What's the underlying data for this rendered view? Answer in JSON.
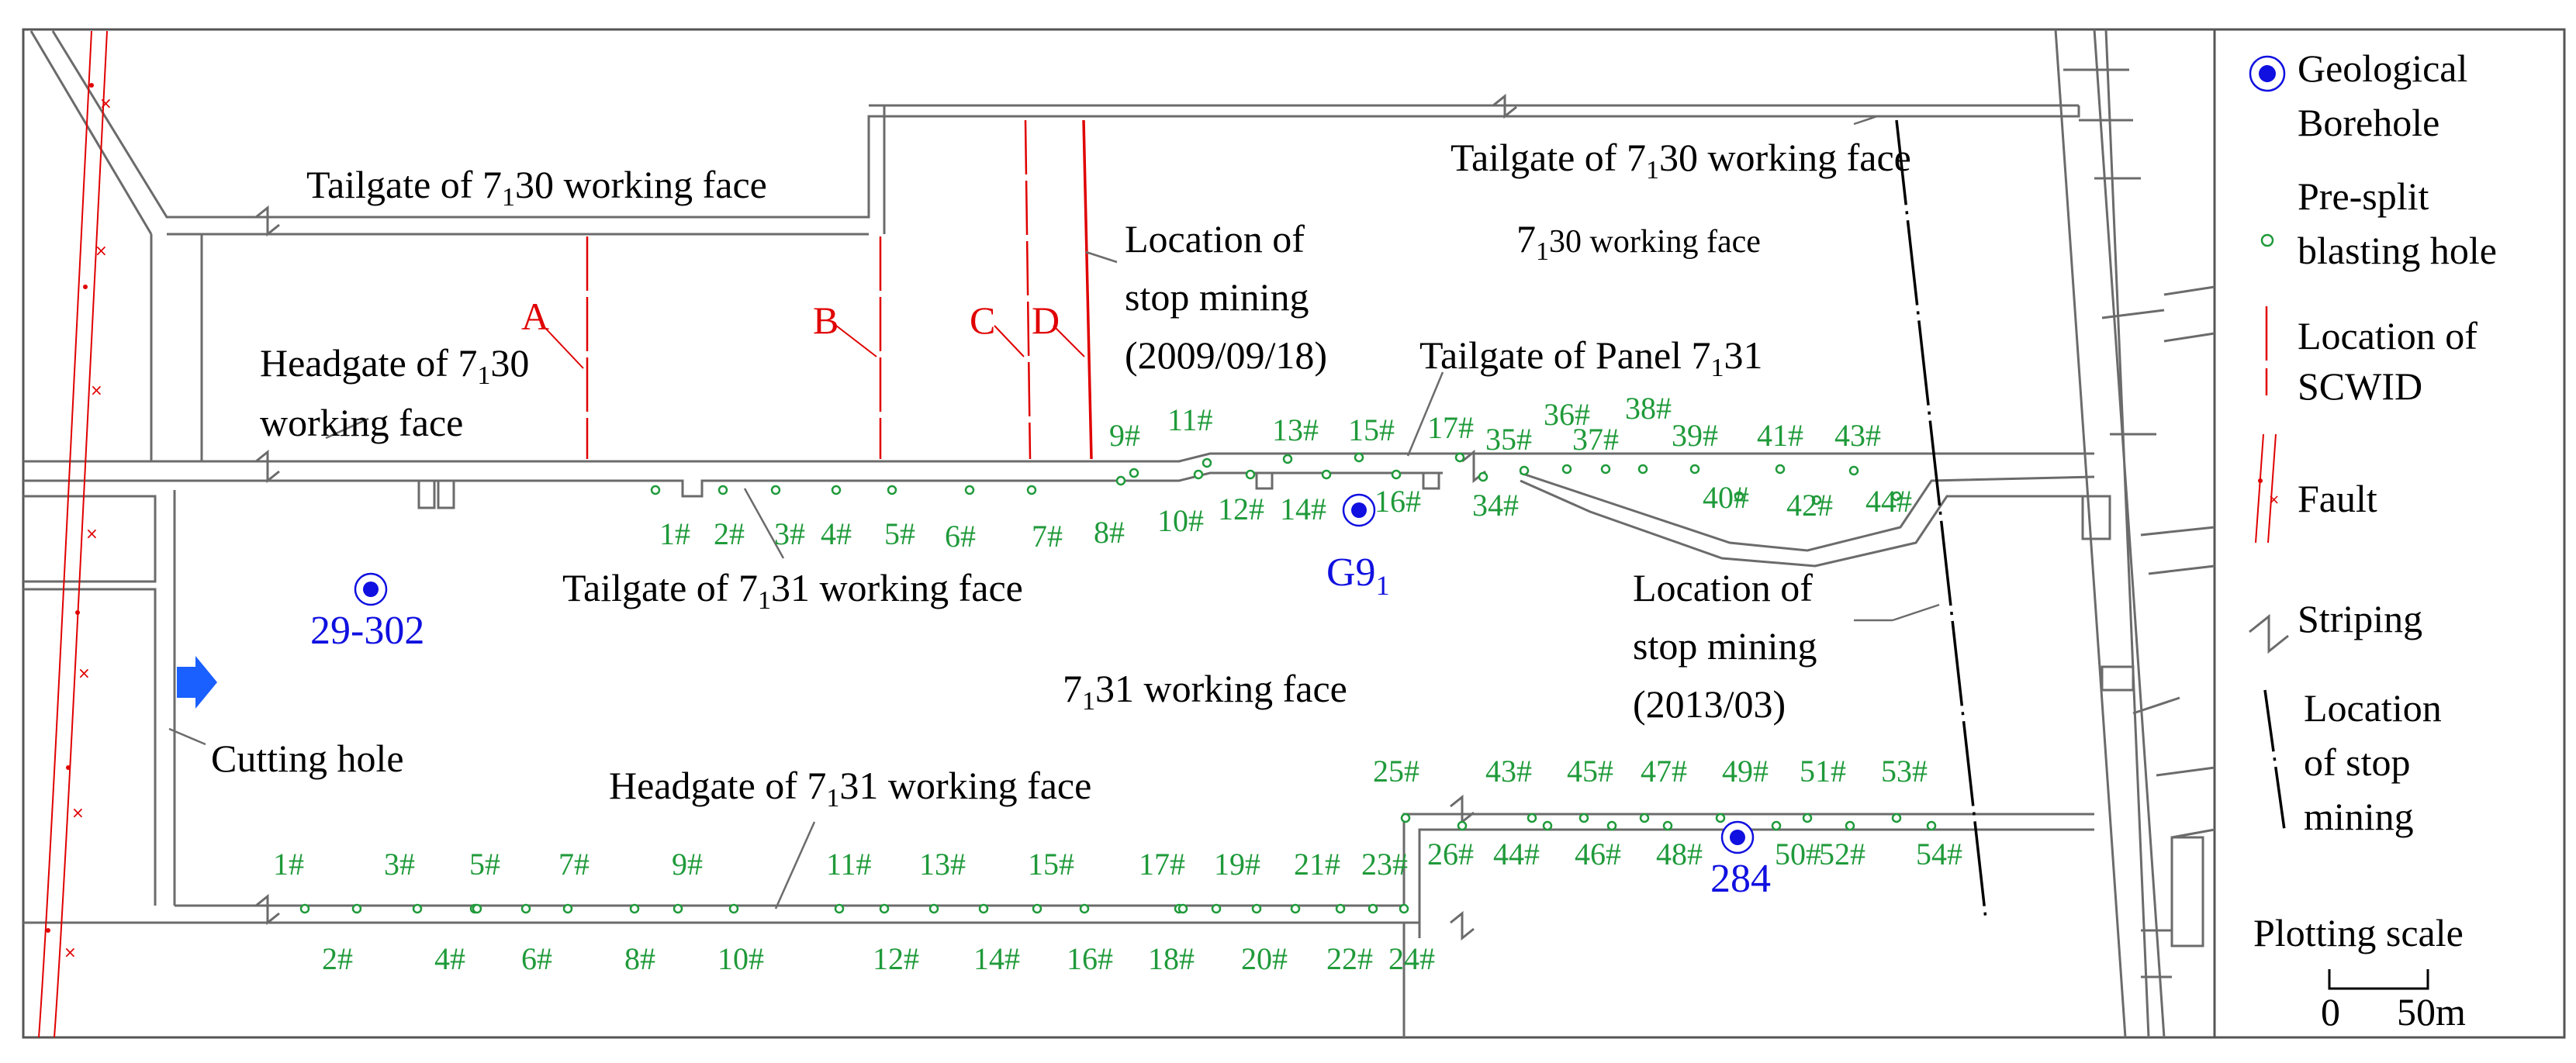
{
  "labels": {
    "tailgate_730_left": [
      "Tailgate of 7",
      "1",
      "30 working face"
    ],
    "tailgate_730_right": [
      "Tailgate of 7",
      "1",
      "30 working face"
    ],
    "headgate_730_line1": [
      "Headgate of 7",
      "1",
      "30"
    ],
    "headgate_730_line2": "working face",
    "face_730": [
      "7",
      "1",
      "30 working face"
    ],
    "stop_2009_line1": "Location of",
    "stop_2009_line2": "stop mining",
    "stop_2009_line3": "(2009/09/18)",
    "tailgate_panel_731": [
      "Tailgate of Panel 7",
      "1",
      "31"
    ],
    "tailgate_731": [
      "Tailgate of  7",
      "1",
      "31 working face"
    ],
    "face_731": [
      "7",
      "1",
      "31 working face"
    ],
    "stop_2013_line1": "Location of",
    "stop_2013_line2": "stop mining",
    "stop_2013_line3": "(2013/03)",
    "cutting_hole": "Cutting hole",
    "headgate_731": [
      "Headgate of  7",
      "1",
      "31 working face"
    ]
  },
  "scwid_markers": [
    "A",
    "B",
    "C",
    "D"
  ],
  "boreholes": {
    "b29_302": "29-302",
    "g91": [
      "G9",
      "1"
    ],
    "b284": "284"
  },
  "tailgate_holes_top": [
    "9#",
    "11#",
    "13#",
    "15#",
    "17#",
    "35#",
    "36#",
    "37#",
    "38#",
    "39#",
    "41#",
    "43#"
  ],
  "tailgate_holes_bottom": [
    "1#",
    "2#",
    "3#",
    "4#",
    "5#",
    "6#",
    "7#",
    "8#",
    "10#",
    "12#",
    "14#",
    "16#",
    "34#",
    "40#",
    "42#",
    "44#"
  ],
  "headgate_holes_top": [
    "1#",
    "3#",
    "5#",
    "7#",
    "9#",
    "11#",
    "13#",
    "15#",
    "17#",
    "19#",
    "21#",
    "23#",
    "25#",
    "43#",
    "45#",
    "47#",
    "49#",
    "51#",
    "53#"
  ],
  "headgate_holes_bottom": [
    "2#",
    "4#",
    "6#",
    "8#",
    "10#",
    "12#",
    "14#",
    "16#",
    "18#",
    "20#",
    "22#",
    "24#",
    "26#",
    "44#",
    "46#",
    "48#",
    "50#",
    "52#",
    "54#"
  ],
  "legend": {
    "borehole_line1": "Geological",
    "borehole_line2": "Borehole",
    "presplit_line1": "Pre-split",
    "presplit_line2": "blasting hole",
    "scwid_line1": "Location of",
    "scwid_line2": "SCWID",
    "fault": "Fault",
    "striping": "Striping",
    "stop_line1": "Location",
    "stop_line2": "of stop",
    "stop_line3": "mining",
    "scale_title": "Plotting scale",
    "scale_zero": "0",
    "scale_end": "50m"
  },
  "colors": {
    "road": "#6b6b6b",
    "scwid": "#e00000",
    "fault": "#e00000",
    "hole": "#1f9a3a",
    "borehole": "#1010e0",
    "stop_line": "#000000"
  }
}
